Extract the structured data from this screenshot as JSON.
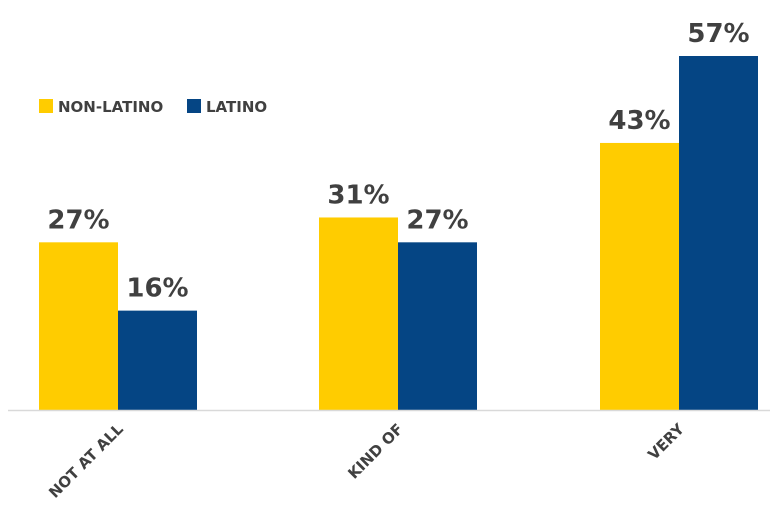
{
  "chart_data": {
    "type": "bar",
    "categories": [
      "NOT AT ALL",
      "KIND OF",
      "VERY"
    ],
    "series": [
      {
        "name": "NON-LATINO",
        "color": "#FFCC00",
        "values": [
          27,
          31,
          43
        ],
        "labels": [
          "27%",
          "31%",
          "43%"
        ]
      },
      {
        "name": "LATINO",
        "color": "#054584",
        "values": [
          16,
          27,
          57
        ],
        "labels": [
          "16%",
          "27%",
          "57%"
        ]
      }
    ],
    "title": "",
    "xlabel": "",
    "ylabel": "",
    "ylim": [
      0,
      57
    ],
    "grid": false,
    "legend_position": "top-left",
    "category_label_rotation": -45
  }
}
